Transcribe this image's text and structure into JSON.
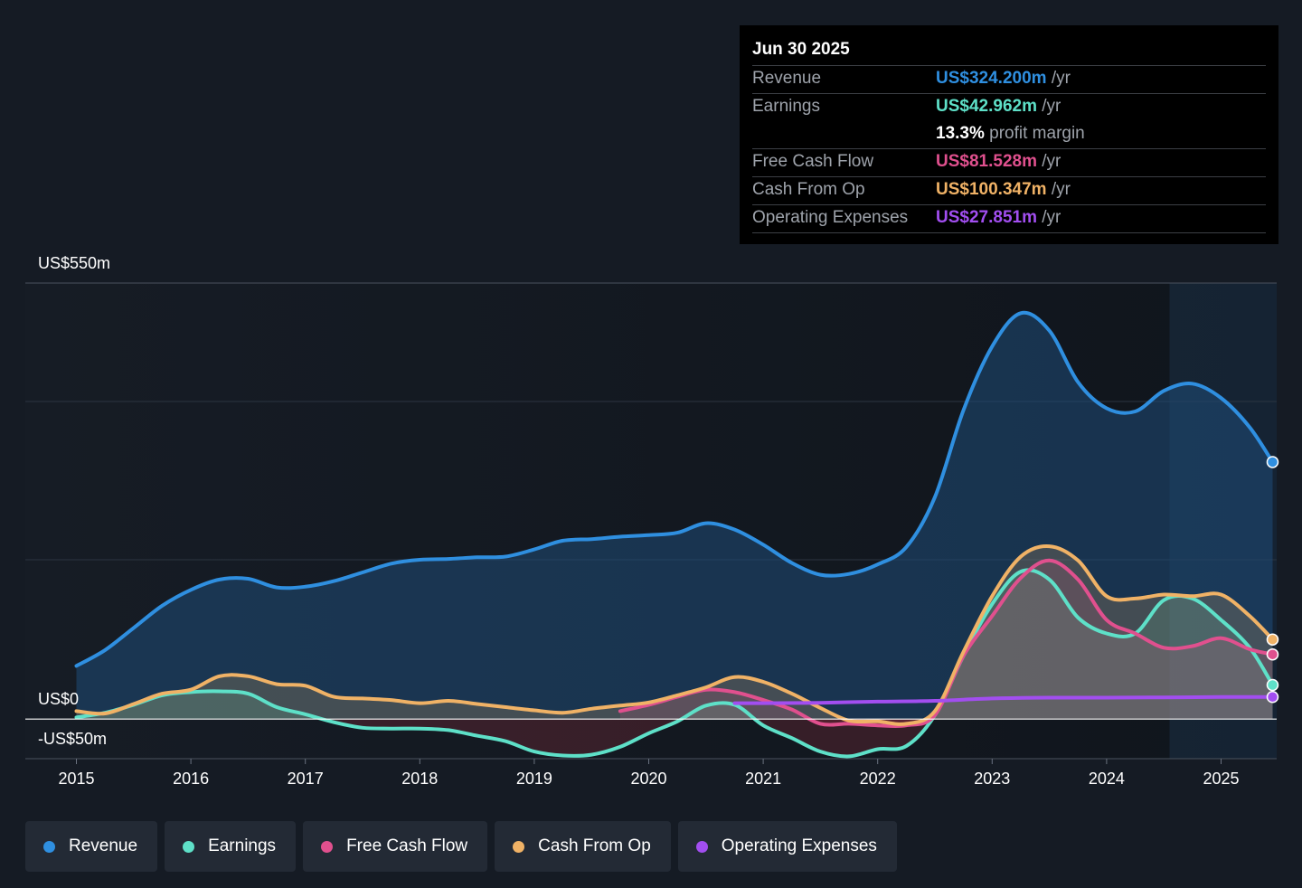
{
  "tooltip": {
    "date": "Jun 30 2025",
    "rows": [
      {
        "label": "Revenue",
        "value": "US$324.200m",
        "unit": "/yr",
        "color": "#2f8fe0"
      },
      {
        "label": "Earnings",
        "value": "US$42.962m",
        "unit": "/yr",
        "color": "#5ee0c8"
      },
      {
        "label": "",
        "value": "13.3%",
        "unit": "profit margin",
        "color": "#ffffff"
      },
      {
        "label": "Free Cash Flow",
        "value": "US$81.528m",
        "unit": "/yr",
        "color": "#e0508e"
      },
      {
        "label": "Cash From Op",
        "value": "US$100.347m",
        "unit": "/yr",
        "color": "#f0b266"
      },
      {
        "label": "Operating Expenses",
        "value": "US$27.851m",
        "unit": "/yr",
        "color": "#a24ef0"
      }
    ]
  },
  "chart_data": {
    "type": "area",
    "ylim": [
      -50,
      550
    ],
    "ytick_labels": {
      "top": "US$550m",
      "zero": "US$0",
      "bottom": "-US$50m"
    },
    "x_ticks": [
      "2015",
      "2016",
      "2017",
      "2018",
      "2019",
      "2020",
      "2021",
      "2022",
      "2023",
      "2024",
      "2025"
    ],
    "x_range": [
      2014.5,
      2025.5
    ],
    "highlight_start": 2024.55,
    "series": [
      {
        "name": "Revenue",
        "color": "#2f8fe0",
        "points": [
          [
            2015,
            67
          ],
          [
            2015.25,
            87
          ],
          [
            2015.5,
            115
          ],
          [
            2015.75,
            143
          ],
          [
            2016,
            163
          ],
          [
            2016.25,
            176
          ],
          [
            2016.5,
            177
          ],
          [
            2016.75,
            166
          ],
          [
            2017,
            167
          ],
          [
            2017.25,
            174
          ],
          [
            2017.5,
            185
          ],
          [
            2017.75,
            196
          ],
          [
            2018,
            201
          ],
          [
            2018.25,
            202
          ],
          [
            2018.5,
            204
          ],
          [
            2018.75,
            205
          ],
          [
            2019,
            214
          ],
          [
            2019.25,
            225
          ],
          [
            2019.5,
            227
          ],
          [
            2019.75,
            230
          ],
          [
            2020,
            232
          ],
          [
            2020.25,
            235
          ],
          [
            2020.5,
            247
          ],
          [
            2020.75,
            239
          ],
          [
            2021,
            220
          ],
          [
            2021.25,
            197
          ],
          [
            2021.5,
            182
          ],
          [
            2021.75,
            183
          ],
          [
            2022,
            195
          ],
          [
            2022.25,
            217
          ],
          [
            2022.5,
            280
          ],
          [
            2022.75,
            390
          ],
          [
            2023,
            470
          ],
          [
            2023.25,
            512
          ],
          [
            2023.5,
            490
          ],
          [
            2023.75,
            425
          ],
          [
            2024,
            392
          ],
          [
            2024.25,
            388
          ],
          [
            2024.5,
            414
          ],
          [
            2024.75,
            423
          ],
          [
            2025,
            405
          ],
          [
            2025.25,
            368
          ],
          [
            2025.45,
            324.2
          ]
        ]
      },
      {
        "name": "Earnings",
        "color": "#5ee0c8",
        "points": [
          [
            2015,
            2
          ],
          [
            2015.25,
            8
          ],
          [
            2015.5,
            18
          ],
          [
            2015.75,
            30
          ],
          [
            2016,
            34
          ],
          [
            2016.25,
            35
          ],
          [
            2016.5,
            32
          ],
          [
            2016.75,
            15
          ],
          [
            2017,
            6
          ],
          [
            2017.25,
            -4
          ],
          [
            2017.5,
            -11
          ],
          [
            2017.75,
            -12
          ],
          [
            2018,
            -12
          ],
          [
            2018.25,
            -14
          ],
          [
            2018.5,
            -21
          ],
          [
            2018.75,
            -28
          ],
          [
            2019,
            -41
          ],
          [
            2019.25,
            -46
          ],
          [
            2019.5,
            -45
          ],
          [
            2019.75,
            -35
          ],
          [
            2020,
            -18
          ],
          [
            2020.25,
            -3
          ],
          [
            2020.5,
            17
          ],
          [
            2020.75,
            18
          ],
          [
            2021,
            -8
          ],
          [
            2021.25,
            -24
          ],
          [
            2021.5,
            -41
          ],
          [
            2021.75,
            -47
          ],
          [
            2022,
            -38
          ],
          [
            2022.25,
            -34
          ],
          [
            2022.5,
            5
          ],
          [
            2022.75,
            80
          ],
          [
            2023,
            145
          ],
          [
            2023.25,
            186
          ],
          [
            2023.5,
            176
          ],
          [
            2023.75,
            128
          ],
          [
            2024,
            108
          ],
          [
            2024.25,
            108
          ],
          [
            2024.5,
            150
          ],
          [
            2024.75,
            152
          ],
          [
            2025,
            125
          ],
          [
            2025.25,
            90
          ],
          [
            2025.45,
            42.962
          ]
        ]
      },
      {
        "name": "Free Cash Flow",
        "color": "#e0508e",
        "points": [
          [
            2019.75,
            10
          ],
          [
            2020,
            18
          ],
          [
            2020.25,
            28
          ],
          [
            2020.5,
            37
          ],
          [
            2020.75,
            34
          ],
          [
            2021,
            24
          ],
          [
            2021.25,
            12
          ],
          [
            2021.5,
            -6
          ],
          [
            2021.75,
            -6
          ],
          [
            2022,
            -8
          ],
          [
            2022.25,
            -8
          ],
          [
            2022.5,
            5
          ],
          [
            2022.75,
            80
          ],
          [
            2023,
            130
          ],
          [
            2023.25,
            178
          ],
          [
            2023.5,
            200
          ],
          [
            2023.75,
            176
          ],
          [
            2024,
            125
          ],
          [
            2024.25,
            108
          ],
          [
            2024.5,
            90
          ],
          [
            2024.75,
            92
          ],
          [
            2025,
            102
          ],
          [
            2025.25,
            88
          ],
          [
            2025.45,
            81.528
          ]
        ]
      },
      {
        "name": "Cash From Op",
        "color": "#f0b266",
        "points": [
          [
            2015,
            10
          ],
          [
            2015.25,
            7
          ],
          [
            2015.5,
            19
          ],
          [
            2015.75,
            32
          ],
          [
            2016,
            37
          ],
          [
            2016.25,
            54
          ],
          [
            2016.5,
            54
          ],
          [
            2016.75,
            44
          ],
          [
            2017,
            42
          ],
          [
            2017.25,
            28
          ],
          [
            2017.5,
            26
          ],
          [
            2017.75,
            24
          ],
          [
            2018,
            20
          ],
          [
            2018.25,
            23
          ],
          [
            2018.5,
            19
          ],
          [
            2018.75,
            15
          ],
          [
            2019,
            11
          ],
          [
            2019.25,
            8
          ],
          [
            2019.5,
            13
          ],
          [
            2019.75,
            17
          ],
          [
            2020,
            21
          ],
          [
            2020.25,
            30
          ],
          [
            2020.5,
            40
          ],
          [
            2020.75,
            53
          ],
          [
            2021,
            47
          ],
          [
            2021.25,
            32
          ],
          [
            2021.5,
            14
          ],
          [
            2021.75,
            -2
          ],
          [
            2022,
            -3
          ],
          [
            2022.25,
            -6
          ],
          [
            2022.5,
            10
          ],
          [
            2022.75,
            85
          ],
          [
            2023,
            155
          ],
          [
            2023.25,
            205
          ],
          [
            2023.5,
            218
          ],
          [
            2023.75,
            200
          ],
          [
            2024,
            155
          ],
          [
            2024.25,
            152
          ],
          [
            2024.5,
            157
          ],
          [
            2024.75,
            155
          ],
          [
            2025,
            157
          ],
          [
            2025.25,
            130
          ],
          [
            2025.45,
            100.347
          ]
        ]
      },
      {
        "name": "Operating Expenses",
        "color": "#a24ef0",
        "points": [
          [
            2020.75,
            20
          ],
          [
            2021,
            20
          ],
          [
            2021.5,
            20.5
          ],
          [
            2022,
            22
          ],
          [
            2022.5,
            23
          ],
          [
            2023,
            26
          ],
          [
            2023.5,
            27
          ],
          [
            2024,
            27
          ],
          [
            2024.5,
            27.3
          ],
          [
            2025,
            27.8
          ],
          [
            2025.45,
            27.851
          ]
        ]
      }
    ]
  },
  "legend": [
    {
      "label": "Revenue",
      "color": "#2f8fe0"
    },
    {
      "label": "Earnings",
      "color": "#5ee0c8"
    },
    {
      "label": "Free Cash Flow",
      "color": "#e0508e"
    },
    {
      "label": "Cash From Op",
      "color": "#f0b266"
    },
    {
      "label": "Operating Expenses",
      "color": "#a24ef0"
    }
  ]
}
